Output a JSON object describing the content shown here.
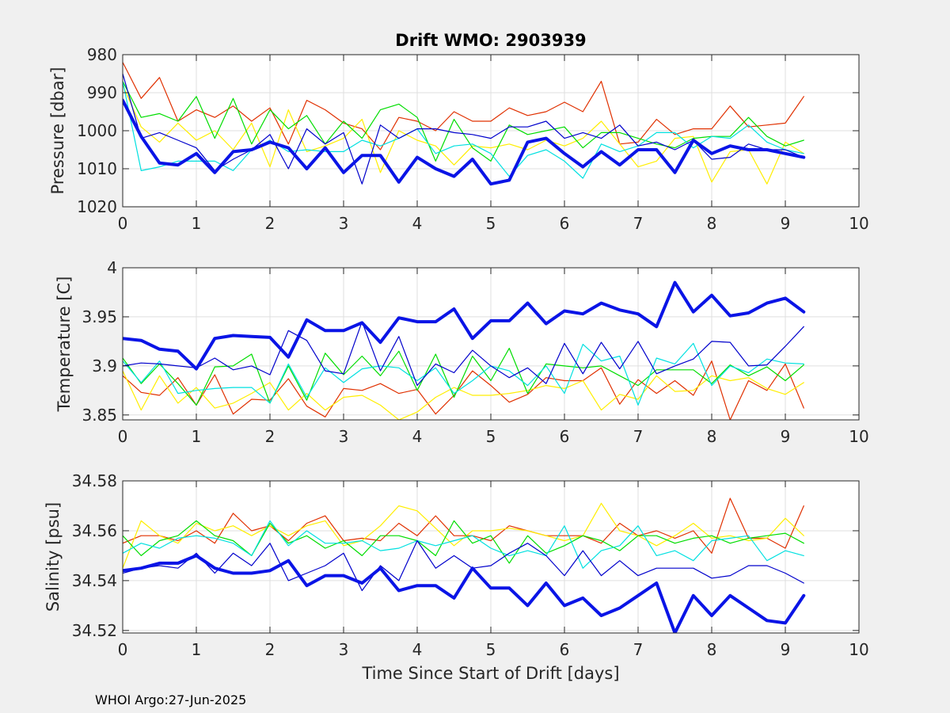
{
  "figure": {
    "title": "Drift WMO: 2903939",
    "footer": "WHOI Argo:27-Jun-2025",
    "xlabel": "Time Since Start of Drift [days]"
  },
  "chart_data": [
    {
      "type": "line",
      "title": "Drift WMO: 2903939",
      "xlabel": "",
      "ylabel": "Pressure [dbar]",
      "xlim": [
        0,
        10
      ],
      "ylim": [
        980,
        1020
      ],
      "y_reversed": true,
      "xticks": [
        0,
        1,
        2,
        3,
        4,
        5,
        6,
        7,
        8,
        9,
        10
      ],
      "yticks": [
        980,
        990,
        1000,
        1010,
        1020
      ],
      "grid": true,
      "x": [
        0,
        0.25,
        0.5,
        0.75,
        1,
        1.25,
        1.5,
        1.75,
        2,
        2.25,
        2.5,
        2.75,
        3,
        3.25,
        3.5,
        3.75,
        4,
        4.25,
        4.5,
        4.75,
        5,
        5.25,
        5.5,
        5.75,
        6,
        6.25,
        6.5,
        6.75,
        7,
        7.25,
        7.5,
        7.75,
        8,
        8.25,
        8.5,
        8.75,
        9,
        9.25
      ],
      "series": [
        {
          "color": "#e03000",
          "width": 1.2,
          "values": [
            982,
            991.5,
            986,
            997.5,
            994.5,
            996.5,
            993.5,
            997.5,
            994,
            1003.5,
            992,
            994.5,
            998,
            999.5,
            1005,
            996.5,
            997.5,
            1000,
            995,
            997.5,
            997.5,
            994,
            996,
            995,
            992.5,
            995,
            987,
            1003.5,
            1003,
            997,
            1001,
            999.5,
            999.5,
            993.5,
            999,
            998.5,
            998,
            991
          ]
        },
        {
          "color": "#ffee00",
          "width": 1.2,
          "values": [
            988,
            999,
            1003,
            998,
            1002.5,
            1000,
            1005,
            998,
            1009.5,
            994.5,
            1005.5,
            1004,
            1002,
            997,
            1011,
            1000,
            1002.5,
            1004,
            1009,
            1004,
            1004.5,
            1003.5,
            1005,
            1002.5,
            1004,
            1002,
            997.5,
            1003.5,
            1009.5,
            1008,
            1002,
            1001.5,
            1013.5,
            1005.5,
            1005,
            1014,
            1003,
            1006
          ]
        },
        {
          "color": "#00dd00",
          "width": 1.2,
          "values": [
            987,
            996.5,
            995.5,
            997.5,
            991,
            1002,
            991.5,
            1003.5,
            994.5,
            999.5,
            996,
            1003.5,
            997.5,
            1002,
            994.5,
            993,
            996.5,
            1008,
            997,
            1004.5,
            1008,
            998.5,
            1001,
            1000,
            999,
            1004.5,
            1000.5,
            1000.5,
            1002,
            1003.5,
            1004.5,
            1002,
            1001.5,
            1001.5,
            996.5,
            1001.5,
            1004,
            1002.5
          ]
        },
        {
          "color": "#00e0e0",
          "width": 1.2,
          "values": [
            987,
            1010.5,
            1009.5,
            1008,
            1008,
            1008,
            1010.5,
            1005,
            1002.5,
            1005.5,
            1005,
            1005.5,
            1005.5,
            1002.5,
            1004,
            1002,
            999.5,
            1006,
            1004,
            1003.5,
            1006,
            1012,
            1006.5,
            1005,
            1008,
            1012.5,
            1003.5,
            1005.5,
            1004,
            1000.5,
            1000.5,
            1004.5,
            1001.5,
            1002,
            998.5,
            1003,
            1005,
            1006
          ]
        },
        {
          "color": "#0000cc",
          "width": 1.2,
          "values": [
            985,
            1002,
            1000.5,
            1002.5,
            1004.5,
            1010.5,
            1007.5,
            1005,
            1001,
            1010,
            999.5,
            1003.5,
            1000.5,
            1014,
            998.5,
            1002,
            999.5,
            999.5,
            1000.5,
            1001,
            1002,
            999,
            999,
            997.5,
            1002,
            1000.5,
            1002,
            998.5,
            1004,
            1003,
            1005,
            1002.5,
            1007.5,
            1007,
            1003.5,
            1005,
            1005,
            1007
          ]
        },
        {
          "color": "#0a14e6",
          "width": 4,
          "values": [
            992,
            1001.5,
            1008.5,
            1009,
            1006,
            1011,
            1005.5,
            1005,
            1003,
            1004.5,
            1010,
            1004.5,
            1011,
            1006.5,
            1006.5,
            1013.5,
            1007,
            1010,
            1012,
            1007.5,
            1014,
            1013,
            1003,
            1002,
            1006,
            1009.5,
            1005.5,
            1009,
            1005,
            1005,
            1011,
            1002.5,
            1006,
            1004,
            1005,
            1005,
            1006,
            1007
          ]
        }
      ]
    },
    {
      "type": "line",
      "xlabel": "",
      "ylabel": "Temperature [C]",
      "xlim": [
        0,
        10
      ],
      "ylim": [
        3.845,
        4.0
      ],
      "xticks": [
        0,
        1,
        2,
        3,
        4,
        5,
        6,
        7,
        8,
        9,
        10
      ],
      "yticks": [
        3.85,
        3.9,
        3.95,
        4.0
      ],
      "ytick_labels": [
        "3.85",
        "3.9",
        "3.95",
        "4"
      ],
      "grid": true,
      "x": [
        0,
        0.25,
        0.5,
        0.75,
        1,
        1.25,
        1.5,
        1.75,
        2,
        2.25,
        2.5,
        2.75,
        3,
        3.25,
        3.5,
        3.75,
        4,
        4.25,
        4.5,
        4.75,
        5,
        5.25,
        5.5,
        5.75,
        6,
        6.25,
        6.5,
        6.75,
        7,
        7.25,
        7.5,
        7.75,
        8,
        8.25,
        8.5,
        8.75,
        9,
        9.25
      ],
      "series": [
        {
          "color": "#e03000",
          "width": 1.2,
          "values": [
            3.89,
            3.873,
            3.87,
            3.888,
            3.86,
            3.891,
            3.851,
            3.866,
            3.865,
            3.887,
            3.859,
            3.848,
            3.877,
            3.875,
            3.882,
            3.872,
            3.876,
            3.851,
            3.87,
            3.895,
            3.88,
            3.863,
            3.871,
            3.888,
            3.885,
            3.885,
            3.898,
            3.861,
            3.886,
            3.872,
            3.885,
            3.87,
            3.905,
            3.845,
            3.885,
            3.875,
            3.902,
            3.857
          ]
        },
        {
          "color": "#ffee00",
          "width": 1.2,
          "values": [
            3.895,
            3.855,
            3.89,
            3.862,
            3.878,
            3.857,
            3.862,
            3.872,
            3.883,
            3.855,
            3.872,
            3.855,
            3.868,
            3.87,
            3.86,
            3.845,
            3.853,
            3.868,
            3.878,
            3.87,
            3.87,
            3.872,
            3.875,
            3.88,
            3.877,
            3.885,
            3.855,
            3.871,
            3.866,
            3.89,
            3.874,
            3.875,
            3.89,
            3.885,
            3.888,
            3.877,
            3.871,
            3.883
          ]
        },
        {
          "color": "#00dd00",
          "width": 1.2,
          "values": [
            3.908,
            3.882,
            3.902,
            3.882,
            3.86,
            3.899,
            3.9,
            3.912,
            3.862,
            3.9,
            3.865,
            3.913,
            3.891,
            3.91,
            3.89,
            3.915,
            3.875,
            3.912,
            3.868,
            3.91,
            3.885,
            3.918,
            3.872,
            3.902,
            3.9,
            3.898,
            3.9,
            3.89,
            3.88,
            3.896,
            3.896,
            3.896,
            3.882,
            3.901,
            3.89,
            3.899,
            3.885,
            3.901
          ]
        },
        {
          "color": "#00e0e0",
          "width": 1.2,
          "values": [
            3.905,
            3.883,
            3.905,
            3.872,
            3.875,
            3.877,
            3.878,
            3.878,
            3.862,
            3.902,
            3.868,
            3.898,
            3.883,
            3.897,
            3.9,
            3.898,
            3.885,
            3.898,
            3.872,
            3.885,
            3.9,
            3.895,
            3.88,
            3.9,
            3.872,
            3.922,
            3.905,
            3.91,
            3.86,
            3.908,
            3.902,
            3.923,
            3.88,
            3.9,
            3.893,
            3.907,
            3.903,
            3.902
          ]
        },
        {
          "color": "#0000cc",
          "width": 1.2,
          "values": [
            3.9,
            3.903,
            3.902,
            3.9,
            3.898,
            3.908,
            3.896,
            3.9,
            3.891,
            3.936,
            3.926,
            3.895,
            3.892,
            3.945,
            3.895,
            3.93,
            3.88,
            3.902,
            3.893,
            3.916,
            3.9,
            3.888,
            3.898,
            3.882,
            3.923,
            3.892,
            3.924,
            3.897,
            3.925,
            3.892,
            3.9,
            3.907,
            3.925,
            3.924,
            3.9,
            3.901,
            3.92,
            3.94
          ]
        },
        {
          "color": "#0a14e6",
          "width": 4,
          "values": [
            3.928,
            3.926,
            3.917,
            3.915,
            3.897,
            3.928,
            3.931,
            3.93,
            3.929,
            3.909,
            3.947,
            3.936,
            3.936,
            3.944,
            3.924,
            3.949,
            3.945,
            3.945,
            3.958,
            3.928,
            3.946,
            3.946,
            3.964,
            3.943,
            3.956,
            3.953,
            3.964,
            3.957,
            3.953,
            3.94,
            3.985,
            3.955,
            3.972,
            3.951,
            3.954,
            3.964,
            3.969,
            3.955
          ]
        }
      ]
    },
    {
      "type": "line",
      "xlabel": "Time Since Start of Drift [days]",
      "ylabel": "Salinity [psu]",
      "xlim": [
        0,
        10
      ],
      "ylim": [
        34.519,
        34.58
      ],
      "xticks": [
        0,
        1,
        2,
        3,
        4,
        5,
        6,
        7,
        8,
        9,
        10
      ],
      "yticks": [
        34.52,
        34.54,
        34.56,
        34.58
      ],
      "ytick_labels": [
        "34.52",
        "34.54",
        "34.56",
        "34.58"
      ],
      "grid": true,
      "x": [
        0,
        0.25,
        0.5,
        0.75,
        1,
        1.25,
        1.5,
        1.75,
        2,
        2.25,
        2.5,
        2.75,
        3,
        3.25,
        3.5,
        3.75,
        4,
        4.25,
        4.5,
        4.75,
        5,
        5.25,
        5.5,
        5.75,
        6,
        6.25,
        6.5,
        6.75,
        7,
        7.25,
        7.5,
        7.75,
        8,
        8.25,
        8.5,
        8.75,
        9,
        9.25
      ],
      "series": [
        {
          "color": "#e03000",
          "width": 1.2,
          "values": [
            34.555,
            34.558,
            34.558,
            34.556,
            34.56,
            34.555,
            34.567,
            34.56,
            34.562,
            34.556,
            34.563,
            34.566,
            34.556,
            34.557,
            34.556,
            34.563,
            34.558,
            34.566,
            34.558,
            34.558,
            34.556,
            34.562,
            34.56,
            34.558,
            34.558,
            34.558,
            34.555,
            34.563,
            34.558,
            34.56,
            34.557,
            34.56,
            34.551,
            34.573,
            34.557,
            34.557,
            34.553,
            34.57
          ]
        },
        {
          "color": "#ffee00",
          "width": 1.2,
          "values": [
            34.545,
            34.564,
            34.558,
            34.555,
            34.563,
            34.56,
            34.562,
            34.558,
            34.562,
            34.558,
            34.562,
            34.564,
            34.554,
            34.556,
            34.562,
            34.57,
            34.568,
            34.561,
            34.554,
            34.56,
            34.56,
            34.561,
            34.56,
            34.558,
            34.556,
            34.558,
            34.571,
            34.56,
            34.558,
            34.554,
            34.558,
            34.563,
            34.557,
            34.558,
            34.556,
            34.557,
            34.565,
            34.558
          ]
        },
        {
          "color": "#00dd00",
          "width": 1.2,
          "values": [
            34.558,
            34.55,
            34.556,
            34.558,
            34.564,
            34.558,
            34.556,
            34.55,
            34.563,
            34.555,
            34.558,
            34.553,
            34.556,
            34.55,
            34.558,
            34.558,
            34.556,
            34.55,
            34.564,
            34.555,
            34.558,
            34.547,
            34.558,
            34.551,
            34.554,
            34.558,
            34.556,
            34.552,
            34.558,
            34.558,
            34.555,
            34.557,
            34.558,
            34.555,
            34.557,
            34.558,
            34.559,
            34.555
          ]
        },
        {
          "color": "#00e0e0",
          "width": 1.2,
          "values": [
            34.551,
            34.555,
            34.553,
            34.557,
            34.558,
            34.557,
            34.555,
            34.55,
            34.564,
            34.554,
            34.56,
            34.555,
            34.555,
            34.556,
            34.552,
            34.553,
            34.556,
            34.554,
            34.556,
            34.558,
            34.553,
            34.55,
            34.552,
            34.55,
            34.562,
            34.545,
            34.552,
            34.554,
            34.562,
            34.55,
            34.552,
            34.548,
            34.556,
            34.557,
            34.558,
            34.548,
            34.552,
            34.55
          ]
        },
        {
          "color": "#0000cc",
          "width": 1.2,
          "values": [
            34.543,
            34.545,
            34.546,
            34.545,
            34.551,
            34.543,
            34.551,
            34.546,
            34.555,
            34.54,
            34.543,
            34.546,
            34.551,
            34.536,
            34.546,
            34.54,
            34.556,
            34.545,
            34.55,
            34.545,
            34.546,
            34.551,
            34.555,
            34.55,
            34.542,
            34.552,
            34.542,
            34.548,
            34.542,
            34.545,
            34.545,
            34.545,
            34.541,
            34.542,
            34.546,
            34.546,
            34.543,
            34.539
          ]
        },
        {
          "color": "#0a14e6",
          "width": 4,
          "values": [
            34.544,
            34.545,
            34.547,
            34.547,
            34.55,
            34.545,
            34.543,
            34.543,
            34.544,
            34.548,
            34.538,
            34.542,
            34.542,
            34.539,
            34.545,
            34.536,
            34.538,
            34.538,
            34.533,
            34.545,
            34.537,
            34.537,
            34.53,
            34.539,
            34.53,
            34.533,
            34.526,
            34.529,
            34.534,
            34.539,
            34.519,
            34.534,
            34.526,
            34.534,
            34.529,
            34.524,
            34.523,
            34.534
          ]
        }
      ]
    }
  ]
}
